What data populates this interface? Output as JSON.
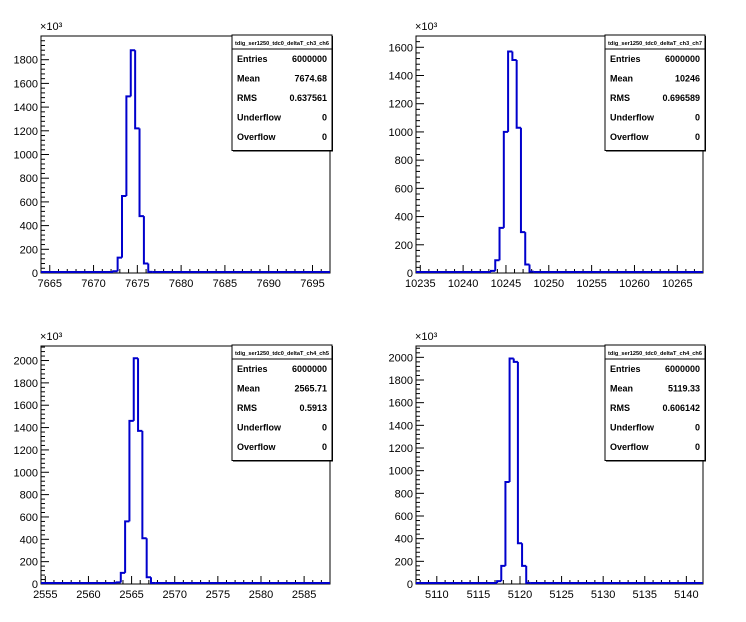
{
  "chart_data": [
    {
      "type": "histogram",
      "stats_title": "tdig_ser1250_tdc0_deltaT_ch3_ch6",
      "stats": [
        {
          "label": "Entries",
          "value": "6000000"
        },
        {
          "label": "Mean",
          "value": "7674.68"
        },
        {
          "label": "RMS",
          "value": "0.637561"
        },
        {
          "label": "Underflow",
          "value": "0"
        },
        {
          "label": "Overflow",
          "value": "0"
        }
      ],
      "exponent_label": "×10³",
      "xlim": [
        7664,
        7697
      ],
      "ylim": [
        0,
        2000
      ],
      "xticks": [
        "7665",
        "7670",
        "7675",
        "7680",
        "7685",
        "7690",
        "7695"
      ],
      "yticks": [
        "0",
        "200",
        "400",
        "600",
        "800",
        "1000",
        "1200",
        "1400",
        "1600",
        "1800"
      ],
      "bin_width": 0.5,
      "bins": [
        {
          "x": 7672.5,
          "y": 15
        },
        {
          "x": 7673.0,
          "y": 130
        },
        {
          "x": 7673.5,
          "y": 650
        },
        {
          "x": 7674.0,
          "y": 1490
        },
        {
          "x": 7674.5,
          "y": 1880
        },
        {
          "x": 7675.0,
          "y": 1220
        },
        {
          "x": 7675.5,
          "y": 480
        },
        {
          "x": 7676.0,
          "y": 80
        },
        {
          "x": 7676.5,
          "y": 10
        }
      ]
    },
    {
      "type": "histogram",
      "stats_title": "tdig_ser1250_tdc0_deltaT_ch3_ch7",
      "stats": [
        {
          "label": "Entries",
          "value": "6000000"
        },
        {
          "label": "Mean",
          "value": "10246"
        },
        {
          "label": "RMS",
          "value": "0.696589"
        },
        {
          "label": "Underflow",
          "value": "0"
        },
        {
          "label": "Overflow",
          "value": "0"
        }
      ],
      "exponent_label": "×10³",
      "xlim": [
        10234.5,
        10268
      ],
      "ylim": [
        0,
        1680
      ],
      "xticks": [
        "10235",
        "10240",
        "10245",
        "10250",
        "10255",
        "10260",
        "10265"
      ],
      "yticks": [
        "0",
        "200",
        "400",
        "600",
        "800",
        "1000",
        "1200",
        "1400",
        "1600"
      ],
      "bin_width": 0.5,
      "bins": [
        {
          "x": 10243.5,
          "y": 15
        },
        {
          "x": 10244.0,
          "y": 90
        },
        {
          "x": 10244.5,
          "y": 320
        },
        {
          "x": 10245.0,
          "y": 1000
        },
        {
          "x": 10245.5,
          "y": 1570
        },
        {
          "x": 10246.0,
          "y": 1510
        },
        {
          "x": 10246.5,
          "y": 1030
        },
        {
          "x": 10247.0,
          "y": 290
        },
        {
          "x": 10247.5,
          "y": 60
        },
        {
          "x": 10248.0,
          "y": 10
        }
      ]
    },
    {
      "type": "histogram",
      "stats_title": "tdig_ser1250_tdc0_deltaT_ch4_ch5",
      "stats": [
        {
          "label": "Entries",
          "value": "6000000"
        },
        {
          "label": "Mean",
          "value": "2565.71"
        },
        {
          "label": "RMS",
          "value": "0.5913"
        },
        {
          "label": "Underflow",
          "value": "0"
        },
        {
          "label": "Overflow",
          "value": "0"
        }
      ],
      "exponent_label": "×10³",
      "xlim": [
        2554.5,
        2588
      ],
      "ylim": [
        0,
        2130
      ],
      "xticks": [
        "2555",
        "2560",
        "2565",
        "2570",
        "2575",
        "2580",
        "2585"
      ],
      "yticks": [
        "0",
        "200",
        "400",
        "600",
        "800",
        "1000",
        "1200",
        "1400",
        "1600",
        "1800",
        "2000"
      ],
      "bin_width": 0.5,
      "bins": [
        {
          "x": 2563.5,
          "y": 15
        },
        {
          "x": 2564.0,
          "y": 100
        },
        {
          "x": 2564.5,
          "y": 560
        },
        {
          "x": 2565.0,
          "y": 1460
        },
        {
          "x": 2565.5,
          "y": 2020
        },
        {
          "x": 2566.0,
          "y": 1370
        },
        {
          "x": 2566.5,
          "y": 410
        },
        {
          "x": 2567.0,
          "y": 60
        },
        {
          "x": 2567.5,
          "y": 5
        }
      ]
    },
    {
      "type": "histogram",
      "stats_title": "tdig_ser1250_tdc0_deltaT_ch4_ch6",
      "stats": [
        {
          "label": "Entries",
          "value": "6000000"
        },
        {
          "label": "Mean",
          "value": "5119.33"
        },
        {
          "label": "RMS",
          "value": "0.606142"
        },
        {
          "label": "Underflow",
          "value": "0"
        },
        {
          "label": "Overflow",
          "value": "0"
        }
      ],
      "exponent_label": "×10³",
      "xlim": [
        5107.5,
        5142
      ],
      "ylim": [
        0,
        2100
      ],
      "xticks": [
        "5110",
        "5115",
        "5120",
        "5125",
        "5130",
        "5135",
        "5140"
      ],
      "yticks": [
        "0",
        "200",
        "400",
        "600",
        "800",
        "1000",
        "1200",
        "1400",
        "1600",
        "1800",
        "2000"
      ],
      "bin_width": 0.5,
      "bins": [
        {
          "x": 5117.5,
          "y": 25
        },
        {
          "x": 5118.0,
          "y": 160
        },
        {
          "x": 5118.5,
          "y": 900
        },
        {
          "x": 5119.0,
          "y": 1990
        },
        {
          "x": 5119.5,
          "y": 1960
        },
        {
          "x": 5120.0,
          "y": 360
        },
        {
          "x": 5120.5,
          "y": 160
        },
        {
          "x": 5121.0,
          "y": 10
        }
      ]
    }
  ]
}
